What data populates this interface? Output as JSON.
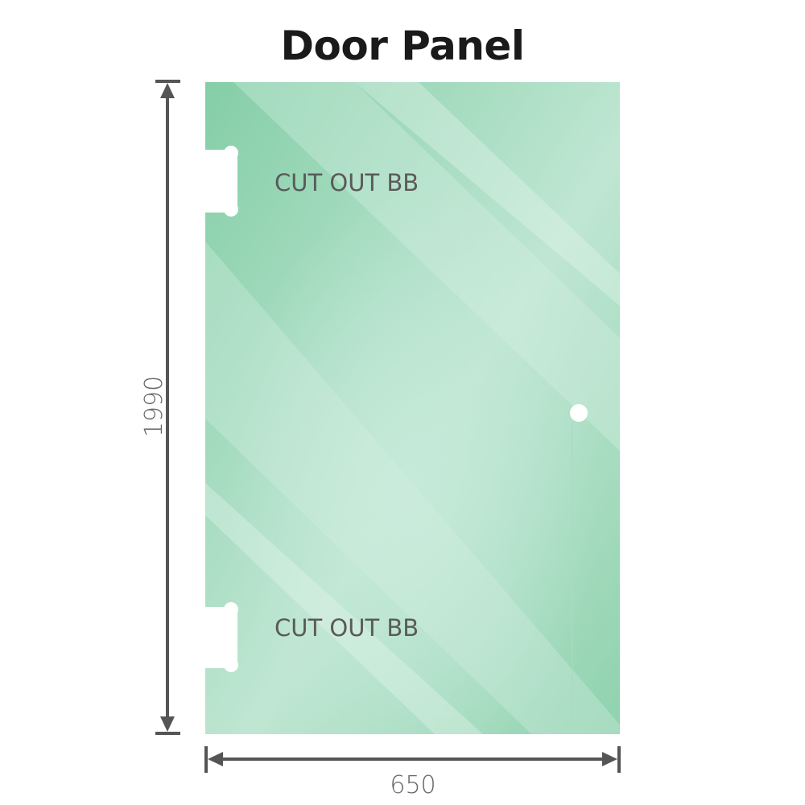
{
  "title": "Door Panel",
  "panel": {
    "color": "#86cfa9",
    "highlight_color": "#c2e8d4",
    "cutouts": [
      {
        "label": "CUT OUT BB"
      },
      {
        "label": "CUT OUT BB"
      }
    ],
    "handle_hole": true
  },
  "dimensions": {
    "height": "1990",
    "width": "650",
    "line_color": "#555555"
  }
}
